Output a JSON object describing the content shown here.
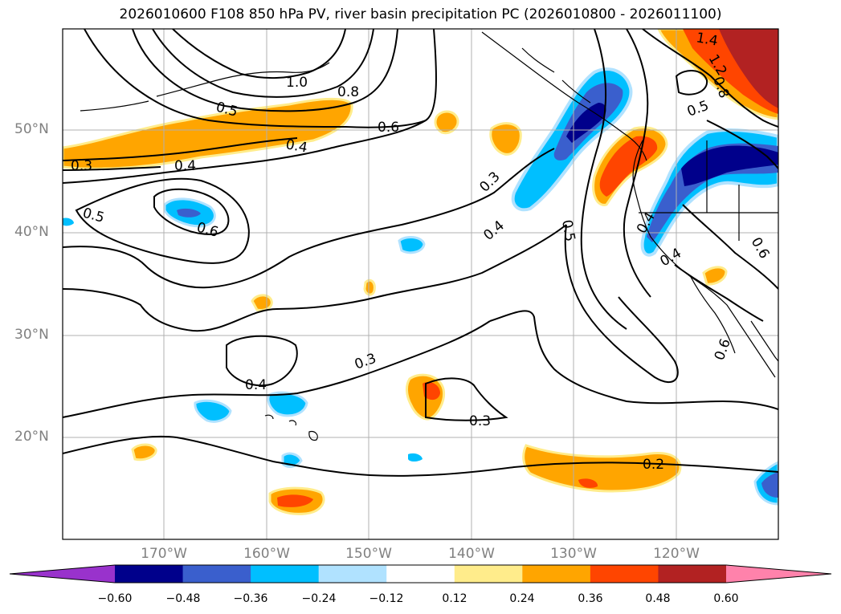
{
  "title": "2026010600 F108 850 hPa PV, river basin precipitation PC (2026010800 - 2026011100)",
  "lat_labels": [
    "50°N",
    "40°N",
    "30°N",
    "20°N"
  ],
  "lon_labels": [
    "170°W",
    "160°W",
    "150°W",
    "140°W",
    "130°W",
    "120°W"
  ],
  "contour_labels": [
    "1.4",
    "1.2",
    "1.0",
    "0.8",
    "0.8",
    "0.6",
    "0.6",
    "0.5",
    "0.5",
    "0.5",
    "0.5",
    "0.4",
    "0.4",
    "0.4",
    "0.4",
    "0.4",
    "0.4",
    "0.3",
    "0.3",
    "0.3",
    "0.3",
    "0.2",
    "0.6",
    "0.6"
  ],
  "colorbar": {
    "ticks": [
      "−0.60",
      "−0.48",
      "−0.36",
      "−0.24",
      "−0.12",
      "0.12",
      "0.24",
      "0.36",
      "0.48",
      "0.60"
    ],
    "colors": [
      "#9932cc",
      "#00008b",
      "#3a5fcd",
      "#00bfff",
      "#b0e2ff",
      "#ffffff",
      "#ffec8b",
      "#ffa500",
      "#ff4500",
      "#b22222",
      "#ff82ab"
    ]
  },
  "shade_colors": {
    "neg_light": "#b0e2ff",
    "neg_mid": "#00bfff",
    "neg_strong": "#3a5fcd",
    "neg_max": "#00008b",
    "pos_light": "#ffec8b",
    "pos_mid": "#ffa500",
    "pos_strong": "#ff4500",
    "pos_max": "#b22222"
  }
}
